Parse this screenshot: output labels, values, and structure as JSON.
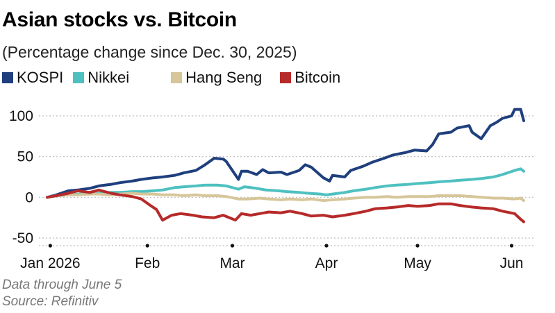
{
  "chart_data": {
    "type": "line",
    "title": "Asian stocks vs. Bitcoin",
    "subtitle": "(Percentage change since Dec. 30, 2025)",
    "xlabel": "",
    "ylabel": "",
    "ylim": [
      -50,
      100
    ],
    "yticks": [
      100,
      50,
      0,
      -50
    ],
    "ytick_labels": [
      "100",
      "50",
      "0",
      "-50"
    ],
    "xlim": [
      "2025-12-30",
      "2026-06-06"
    ],
    "xticks": [
      "2025-12-31",
      "2026-02-01",
      "2026-03-01",
      "2026-04-01",
      "2026-05-01",
      "2026-06-01"
    ],
    "xtick_labels": [
      "Jan 2026",
      "Feb",
      "Mar",
      "Apr",
      "May",
      "Jun"
    ],
    "grid": true,
    "legend_position": "top-left",
    "series": [
      {
        "name": "KOSPI",
        "color": "#1f3f7d",
        "points": [
          [
            "2025-12-30",
            0
          ],
          [
            "2026-01-02",
            3
          ],
          [
            "2026-01-06",
            8
          ],
          [
            "2026-01-09",
            9
          ],
          [
            "2026-01-13",
            11
          ],
          [
            "2026-01-16",
            14
          ],
          [
            "2026-01-20",
            16
          ],
          [
            "2026-01-23",
            18
          ],
          [
            "2026-01-27",
            20
          ],
          [
            "2026-01-30",
            22
          ],
          [
            "2026-02-03",
            24
          ],
          [
            "2026-02-06",
            25
          ],
          [
            "2026-02-10",
            27
          ],
          [
            "2026-02-13",
            30
          ],
          [
            "2026-02-17",
            33
          ],
          [
            "2026-02-20",
            40
          ],
          [
            "2026-02-23",
            48
          ],
          [
            "2026-02-26",
            47
          ],
          [
            "2026-02-27",
            44
          ],
          [
            "2026-03-03",
            22
          ],
          [
            "2026-03-04",
            32
          ],
          [
            "2026-03-06",
            32
          ],
          [
            "2026-03-09",
            28
          ],
          [
            "2026-03-11",
            34
          ],
          [
            "2026-03-13",
            30
          ],
          [
            "2026-03-17",
            31
          ],
          [
            "2026-03-19",
            28
          ],
          [
            "2026-03-23",
            33
          ],
          [
            "2026-03-25",
            40
          ],
          [
            "2026-03-27",
            37
          ],
          [
            "2026-03-31",
            24
          ],
          [
            "2026-04-02",
            20
          ],
          [
            "2026-04-03",
            27
          ],
          [
            "2026-04-07",
            25
          ],
          [
            "2026-04-09",
            33
          ],
          [
            "2026-04-13",
            38
          ],
          [
            "2026-04-16",
            43
          ],
          [
            "2026-04-20",
            48
          ],
          [
            "2026-04-23",
            52
          ],
          [
            "2026-04-27",
            55
          ],
          [
            "2026-04-30",
            58
          ],
          [
            "2026-05-04",
            57
          ],
          [
            "2026-05-06",
            65
          ],
          [
            "2026-05-08",
            78
          ],
          [
            "2026-05-12",
            80
          ],
          [
            "2026-05-14",
            85
          ],
          [
            "2026-05-18",
            88
          ],
          [
            "2026-05-19",
            80
          ],
          [
            "2026-05-22",
            72
          ],
          [
            "2026-05-25",
            88
          ],
          [
            "2026-05-27",
            92
          ],
          [
            "2026-05-29",
            97
          ],
          [
            "2026-06-01",
            100
          ],
          [
            "2026-06-02",
            108
          ],
          [
            "2026-06-04",
            108
          ],
          [
            "2026-06-05",
            94
          ]
        ]
      },
      {
        "name": "Nikkei",
        "color": "#4fc0c0",
        "points": [
          [
            "2025-12-30",
            0
          ],
          [
            "2026-01-02",
            2
          ],
          [
            "2026-01-06",
            3
          ],
          [
            "2026-01-09",
            4
          ],
          [
            "2026-01-13",
            4
          ],
          [
            "2026-01-16",
            5
          ],
          [
            "2026-01-20",
            6
          ],
          [
            "2026-01-23",
            6
          ],
          [
            "2026-01-27",
            7
          ],
          [
            "2026-01-30",
            7
          ],
          [
            "2026-02-03",
            8
          ],
          [
            "2026-02-06",
            9
          ],
          [
            "2026-02-10",
            12
          ],
          [
            "2026-02-13",
            13
          ],
          [
            "2026-02-17",
            14
          ],
          [
            "2026-02-20",
            15
          ],
          [
            "2026-02-24",
            15
          ],
          [
            "2026-02-27",
            14
          ],
          [
            "2026-03-03",
            10
          ],
          [
            "2026-03-05",
            13
          ],
          [
            "2026-03-09",
            11
          ],
          [
            "2026-03-12",
            9
          ],
          [
            "2026-03-16",
            8
          ],
          [
            "2026-03-19",
            7
          ],
          [
            "2026-03-23",
            6
          ],
          [
            "2026-03-26",
            5
          ],
          [
            "2026-03-30",
            4
          ],
          [
            "2026-04-01",
            3
          ],
          [
            "2026-04-03",
            4
          ],
          [
            "2026-04-07",
            6
          ],
          [
            "2026-04-10",
            8
          ],
          [
            "2026-04-14",
            10
          ],
          [
            "2026-04-17",
            12
          ],
          [
            "2026-04-21",
            14
          ],
          [
            "2026-04-24",
            15
          ],
          [
            "2026-04-28",
            16
          ],
          [
            "2026-05-01",
            17
          ],
          [
            "2026-05-05",
            18
          ],
          [
            "2026-05-08",
            19
          ],
          [
            "2026-05-12",
            20
          ],
          [
            "2026-05-15",
            21
          ],
          [
            "2026-05-19",
            22
          ],
          [
            "2026-05-22",
            23
          ],
          [
            "2026-05-26",
            25
          ],
          [
            "2026-05-29",
            28
          ],
          [
            "2026-06-02",
            33
          ],
          [
            "2026-06-04",
            35
          ],
          [
            "2026-06-05",
            32
          ]
        ]
      },
      {
        "name": "Hang Seng",
        "color": "#d6c69a",
        "points": [
          [
            "2025-12-30",
            0
          ],
          [
            "2026-01-02",
            2
          ],
          [
            "2026-01-06",
            3
          ],
          [
            "2026-01-09",
            3
          ],
          [
            "2026-01-13",
            4
          ],
          [
            "2026-01-16",
            4
          ],
          [
            "2026-01-20",
            3
          ],
          [
            "2026-01-23",
            4
          ],
          [
            "2026-01-27",
            5
          ],
          [
            "2026-01-30",
            4
          ],
          [
            "2026-02-03",
            4
          ],
          [
            "2026-02-06",
            3
          ],
          [
            "2026-02-10",
            3
          ],
          [
            "2026-02-13",
            2
          ],
          [
            "2026-02-17",
            3
          ],
          [
            "2026-02-20",
            2
          ],
          [
            "2026-02-24",
            2
          ],
          [
            "2026-02-27",
            1
          ],
          [
            "2026-03-03",
            -2
          ],
          [
            "2026-03-06",
            -2
          ],
          [
            "2026-03-10",
            -1
          ],
          [
            "2026-03-13",
            -2
          ],
          [
            "2026-03-17",
            -3
          ],
          [
            "2026-03-20",
            -2
          ],
          [
            "2026-03-24",
            -3
          ],
          [
            "2026-03-27",
            -2
          ],
          [
            "2026-03-31",
            -4
          ],
          [
            "2026-04-03",
            -3
          ],
          [
            "2026-04-07",
            -2
          ],
          [
            "2026-04-10",
            -1
          ],
          [
            "2026-04-14",
            0
          ],
          [
            "2026-04-17",
            0
          ],
          [
            "2026-04-21",
            1
          ],
          [
            "2026-04-24",
            0
          ],
          [
            "2026-04-28",
            1
          ],
          [
            "2026-05-01",
            1
          ],
          [
            "2026-05-05",
            1
          ],
          [
            "2026-05-08",
            2
          ],
          [
            "2026-05-12",
            2
          ],
          [
            "2026-05-15",
            2
          ],
          [
            "2026-05-19",
            1
          ],
          [
            "2026-05-22",
            0
          ],
          [
            "2026-05-26",
            -1
          ],
          [
            "2026-05-29",
            -1
          ],
          [
            "2026-06-02",
            -2
          ],
          [
            "2026-06-04",
            -1
          ],
          [
            "2026-06-05",
            -4
          ]
        ]
      },
      {
        "name": "Bitcoin",
        "color": "#b72a2a",
        "points": [
          [
            "2025-12-30",
            0
          ],
          [
            "2026-01-02",
            2
          ],
          [
            "2026-01-06",
            5
          ],
          [
            "2026-01-09",
            8
          ],
          [
            "2026-01-13",
            6
          ],
          [
            "2026-01-16",
            9
          ],
          [
            "2026-01-20",
            5
          ],
          [
            "2026-01-23",
            3
          ],
          [
            "2026-01-27",
            1
          ],
          [
            "2026-01-30",
            -2
          ],
          [
            "2026-02-02",
            -10
          ],
          [
            "2026-02-04",
            -15
          ],
          [
            "2026-02-06",
            -28
          ],
          [
            "2026-02-09",
            -22
          ],
          [
            "2026-02-12",
            -20
          ],
          [
            "2026-02-16",
            -22
          ],
          [
            "2026-02-19",
            -24
          ],
          [
            "2026-02-23",
            -25
          ],
          [
            "2026-02-26",
            -22
          ],
          [
            "2026-03-02",
            -28
          ],
          [
            "2026-03-04",
            -20
          ],
          [
            "2026-03-07",
            -22
          ],
          [
            "2026-03-10",
            -20
          ],
          [
            "2026-03-13",
            -18
          ],
          [
            "2026-03-17",
            -19
          ],
          [
            "2026-03-20",
            -17
          ],
          [
            "2026-03-24",
            -20
          ],
          [
            "2026-03-27",
            -23
          ],
          [
            "2026-03-31",
            -22
          ],
          [
            "2026-04-03",
            -24
          ],
          [
            "2026-04-07",
            -22
          ],
          [
            "2026-04-10",
            -20
          ],
          [
            "2026-04-14",
            -17
          ],
          [
            "2026-04-17",
            -14
          ],
          [
            "2026-04-21",
            -13
          ],
          [
            "2026-04-24",
            -12
          ],
          [
            "2026-04-28",
            -10
          ],
          [
            "2026-05-01",
            -11
          ],
          [
            "2026-05-05",
            -10
          ],
          [
            "2026-05-08",
            -8
          ],
          [
            "2026-05-12",
            -8
          ],
          [
            "2026-05-15",
            -10
          ],
          [
            "2026-05-19",
            -12
          ],
          [
            "2026-05-22",
            -13
          ],
          [
            "2026-05-26",
            -14
          ],
          [
            "2026-05-29",
            -17
          ],
          [
            "2026-06-02",
            -20
          ],
          [
            "2026-06-04",
            -27
          ],
          [
            "2026-06-05",
            -30
          ]
        ]
      }
    ]
  },
  "footer": {
    "line1": "Data through June 5",
    "line2": "Source: Refinitiv"
  }
}
